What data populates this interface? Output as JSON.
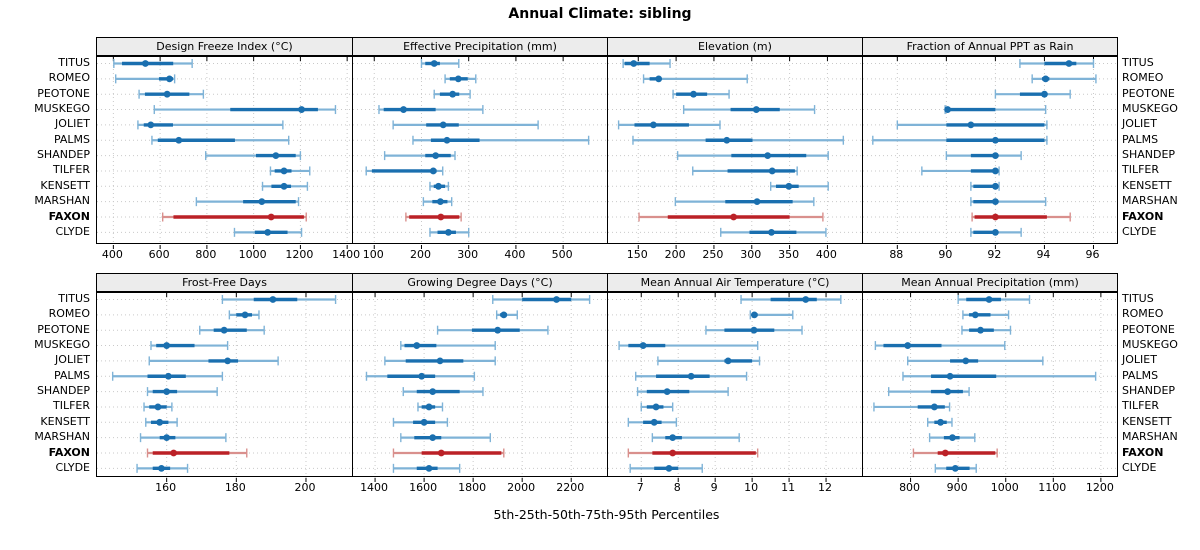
{
  "title": "Annual Climate: sibling",
  "caption": "5th-25th-50th-75th-95th Percentiles",
  "sites": [
    "TITUS",
    "ROMEO",
    "PEOTONE",
    "MUSKEGO",
    "JOLIET",
    "PALMS",
    "SHANDEP",
    "TILFER",
    "KENSETT",
    "MARSHAN",
    "FAXON",
    "CLYDE"
  ],
  "highlighted_site": "FAXON",
  "colors": {
    "series": "#1a6faf",
    "series_light": "#7fb3d7",
    "highlight": "#bb2127",
    "highlight_light": "#d9908d",
    "strip_bg": "#ececec",
    "grid": "#c9c9c9",
    "border": "#000000"
  },
  "chart_data": [
    {
      "type": "dot-whisker",
      "title": "Design Freeze Index (°C)",
      "row": 0,
      "col": 0,
      "xlim": [
        330,
        1425
      ],
      "ticks": [
        400,
        600,
        800,
        1000,
        1200,
        1400
      ],
      "percentiles": [
        5,
        25,
        50,
        75,
        95
      ],
      "values": {
        "TITUS": [
          402,
          437,
          537,
          656,
          737
        ],
        "ROMEO": [
          410,
          595,
          640,
          655,
          662
        ],
        "PEOTONE": [
          510,
          535,
          630,
          725,
          785
        ],
        "MUSKEGO": [
          575,
          900,
          1205,
          1275,
          1350
        ],
        "JOLIET": [
          505,
          530,
          560,
          655,
          1125
        ],
        "PALMS": [
          565,
          590,
          680,
          920,
          1150
        ],
        "SHANDEP": [
          795,
          1010,
          1095,
          1180,
          1200
        ],
        "TILFER": [
          1072,
          1090,
          1130,
          1162,
          1240
        ],
        "KENSETT": [
          1038,
          1076,
          1130,
          1160,
          1230
        ],
        "MARSHAN": [
          755,
          955,
          1035,
          1180,
          1192
        ],
        "FAXON": [
          611,
          657,
          1075,
          1215,
          1225
        ],
        "CLYDE": [
          918,
          1005,
          1060,
          1145,
          1205
        ]
      }
    },
    {
      "type": "dot-whisker",
      "title": "Effective Precipitation (mm)",
      "row": 0,
      "col": 1,
      "xlim": [
        55,
        595
      ],
      "ticks": [
        100,
        200,
        300,
        400,
        500
      ],
      "percentiles": [
        5,
        25,
        50,
        75,
        95
      ],
      "values": {
        "TITUS": [
          200,
          208,
          227,
          239,
          279
        ],
        "ROMEO": [
          250,
          260,
          278,
          298,
          315
        ],
        "PEOTONE": [
          227,
          239,
          266,
          280,
          303
        ],
        "MUSKEGO": [
          110,
          120,
          162,
          230,
          330
        ],
        "JOLIET": [
          140,
          210,
          246,
          279,
          447
        ],
        "PALMS": [
          182,
          220,
          254,
          323,
          554
        ],
        "SHANDEP": [
          122,
          208,
          230,
          262,
          271
        ],
        "TILFER": [
          83,
          95,
          225,
          232,
          245
        ],
        "KENSETT": [
          218,
          226,
          236,
          250,
          257
        ],
        "MARSHAN": [
          204,
          223,
          240,
          255,
          264
        ],
        "FAXON": [
          167,
          174,
          241,
          280,
          284
        ],
        "CLYDE": [
          218,
          234,
          257,
          273,
          300
        ]
      }
    },
    {
      "type": "dot-whisker",
      "title": "Elevation (m)",
      "row": 0,
      "col": 2,
      "xlim": [
        110,
        447
      ],
      "ticks": [
        150,
        200,
        250,
        300,
        350,
        400
      ],
      "percentiles": [
        5,
        25,
        50,
        75,
        95
      ],
      "values": {
        "TITUS": [
          130,
          132,
          144,
          165,
          192
        ],
        "ROMEO": [
          157,
          165,
          177,
          180,
          294
        ],
        "PEOTONE": [
          196,
          200,
          223,
          241,
          270
        ],
        "MUSKEGO": [
          210,
          272,
          306,
          337,
          383
        ],
        "JOLIET": [
          124,
          145,
          170,
          217,
          258
        ],
        "PALMS": [
          143,
          239,
          267,
          301,
          421
        ],
        "SHANDEP": [
          202,
          273,
          321,
          372,
          401
        ],
        "TILFER": [
          222,
          268,
          327,
          357,
          360
        ],
        "KENSETT": [
          325,
          332,
          349,
          362,
          401
        ],
        "MARSHAN": [
          199,
          265,
          307,
          354,
          382
        ],
        "FAXON": [
          151,
          189,
          276,
          350,
          394
        ],
        "CLYDE": [
          259,
          297,
          326,
          359,
          398
        ]
      }
    },
    {
      "type": "dot-whisker",
      "title": "Fraction of Annual PPT as Rain",
      "row": 0,
      "col": 3,
      "xlim": [
        86.6,
        97.0
      ],
      "ticks": [
        88,
        90,
        92,
        94,
        96
      ],
      "percentiles": [
        5,
        25,
        50,
        75,
        95
      ],
      "values": {
        "TITUS": [
          93.0,
          94.0,
          95.0,
          95.3,
          96.0
        ],
        "ROMEO": [
          93.5,
          93.9,
          94.05,
          94.2,
          96.1
        ],
        "PEOTONE": [
          92.0,
          93.0,
          94.0,
          94.1,
          95.05
        ],
        "MUSKEGO": [
          89.95,
          90.0,
          90.05,
          92.0,
          94.05
        ],
        "JOLIET": [
          88.0,
          90.0,
          91.0,
          94.0,
          94.1
        ],
        "PALMS": [
          87.0,
          90.0,
          92.0,
          94.0,
          94.1
        ],
        "SHANDEP": [
          90.0,
          91.0,
          92.0,
          92.1,
          93.05
        ],
        "TILFER": [
          89.0,
          91.0,
          92.0,
          92.05,
          92.15
        ],
        "KENSETT": [
          91.0,
          91.1,
          92.0,
          92.05,
          92.15
        ],
        "MARSHAN": [
          91.0,
          91.1,
          92.0,
          92.1,
          94.05
        ],
        "FAXON": [
          91.05,
          91.15,
          92.0,
          94.1,
          95.05
        ],
        "CLYDE": [
          91.0,
          91.1,
          92.0,
          92.1,
          93.05
        ]
      }
    },
    {
      "type": "dot-whisker",
      "title": "Frost-Free Days",
      "row": 1,
      "col": 0,
      "xlim": [
        140,
        213.5
      ],
      "ticks": [
        160,
        180,
        200
      ],
      "percentiles": [
        5,
        25,
        50,
        75,
        95
      ],
      "values": {
        "TITUS": [
          176,
          185,
          190.5,
          197.5,
          208.5
        ],
        "ROMEO": [
          178,
          180,
          182.5,
          184.5,
          186.5
        ],
        "PEOTONE": [
          169.5,
          173.5,
          176.5,
          183,
          188
        ],
        "MUSKEGO": [
          155.5,
          157,
          160,
          168,
          177.5
        ],
        "JOLIET": [
          155,
          172,
          177.5,
          180.5,
          192
        ],
        "PALMS": [
          144.5,
          154.5,
          160.5,
          165.5,
          176
        ],
        "SHANDEP": [
          154.5,
          156,
          160,
          163,
          174.5
        ],
        "TILFER": [
          153.5,
          155,
          157.5,
          160,
          161.5
        ],
        "KENSETT": [
          154,
          155.5,
          158,
          160.5,
          163
        ],
        "MARSHAN": [
          152.5,
          158,
          160,
          162.5,
          177
        ],
        "FAXON": [
          154.5,
          156,
          162,
          178,
          183
        ],
        "CLYDE": [
          151.5,
          156,
          158.5,
          161,
          166
        ]
      }
    },
    {
      "type": "dot-whisker",
      "title": "Growing Degree Days (°C)",
      "row": 1,
      "col": 1,
      "xlim": [
        1310,
        2350
      ],
      "ticks": [
        1400,
        1600,
        1800,
        2000,
        2200
      ],
      "percentiles": [
        5,
        25,
        50,
        75,
        95
      ],
      "values": {
        "TITUS": [
          1880,
          2000,
          2140,
          2200,
          2275
        ],
        "ROMEO": [
          1896,
          1910,
          1925,
          1938,
          1980
        ],
        "PEOTONE": [
          1655,
          1795,
          1900,
          1990,
          2105
        ],
        "MUSKEGO": [
          1505,
          1520,
          1570,
          1650,
          1890
        ],
        "JOLIET": [
          1440,
          1525,
          1665,
          1760,
          1890
        ],
        "PALMS": [
          1365,
          1450,
          1590,
          1645,
          1805
        ],
        "SHANDEP": [
          1515,
          1570,
          1635,
          1745,
          1840
        ],
        "TILFER": [
          1575,
          1590,
          1620,
          1645,
          1675
        ],
        "KENSETT": [
          1475,
          1555,
          1600,
          1645,
          1695
        ],
        "MARSHAN": [
          1505,
          1560,
          1635,
          1670,
          1870
        ],
        "FAXON": [
          1475,
          1590,
          1670,
          1915,
          1925
        ],
        "CLYDE": [
          1475,
          1570,
          1620,
          1655,
          1745
        ]
      }
    },
    {
      "type": "dot-whisker",
      "title": "Mean Annual Air Temperature (°C)",
      "row": 1,
      "col": 2,
      "xlim": [
        6.1,
        13.0
      ],
      "ticks": [
        7,
        8,
        9,
        10,
        11,
        12
      ],
      "percentiles": [
        5,
        25,
        50,
        75,
        95
      ],
      "values": {
        "TITUS": [
          9.7,
          10.5,
          11.45,
          11.75,
          12.4
        ],
        "ROMEO": [
          9.95,
          10.0,
          10.06,
          10.15,
          11.1
        ],
        "PEOTONE": [
          8.75,
          9.25,
          10.05,
          10.6,
          11.35
        ],
        "MUSKEGO": [
          6.4,
          6.65,
          7.05,
          7.65,
          10.15
        ],
        "JOLIET": [
          7.45,
          9.25,
          9.35,
          10.0,
          10.2
        ],
        "PALMS": [
          6.85,
          7.4,
          8.35,
          8.85,
          9.85
        ],
        "SHANDEP": [
          6.9,
          7.15,
          7.7,
          8.3,
          9.35
        ],
        "TILFER": [
          7.0,
          7.15,
          7.4,
          7.6,
          7.85
        ],
        "KENSETT": [
          6.65,
          7.05,
          7.35,
          7.55,
          7.95
        ],
        "MARSHAN": [
          7.3,
          7.65,
          7.85,
          8.1,
          9.65
        ],
        "FAXON": [
          6.65,
          7.3,
          7.85,
          10.1,
          10.15
        ],
        "CLYDE": [
          6.7,
          7.35,
          7.75,
          8.0,
          8.65
        ]
      }
    },
    {
      "type": "dot-whisker",
      "title": "Mean Annual Precipitation (mm)",
      "row": 1,
      "col": 3,
      "xlim": [
        700,
        1236
      ],
      "ticks": [
        800,
        900,
        1000,
        1100,
        1200
      ],
      "percentiles": [
        5,
        25,
        50,
        75,
        95
      ],
      "values": {
        "TITUS": [
          900,
          917,
          965,
          990,
          1050
        ],
        "ROMEO": [
          910,
          923,
          936,
          968,
          1006
        ],
        "PEOTONE": [
          908,
          923,
          947,
          975,
          1010
        ],
        "MUSKEGO": [
          726,
          743,
          794,
          865,
          998
        ],
        "JOLIET": [
          794,
          883,
          916,
          942,
          1078
        ],
        "PALMS": [
          784,
          843,
          883,
          980,
          1189
        ],
        "SHANDEP": [
          754,
          843,
          878,
          910,
          923
        ],
        "TILFER": [
          723,
          815,
          850,
          872,
          882
        ],
        "KENSETT": [
          836,
          850,
          863,
          876,
          887
        ],
        "MARSHAN": [
          840,
          870,
          888,
          903,
          935
        ],
        "FAXON": [
          806,
          857,
          873,
          978,
          982
        ],
        "CLYDE": [
          852,
          875,
          894,
          924,
          938
        ]
      }
    }
  ]
}
